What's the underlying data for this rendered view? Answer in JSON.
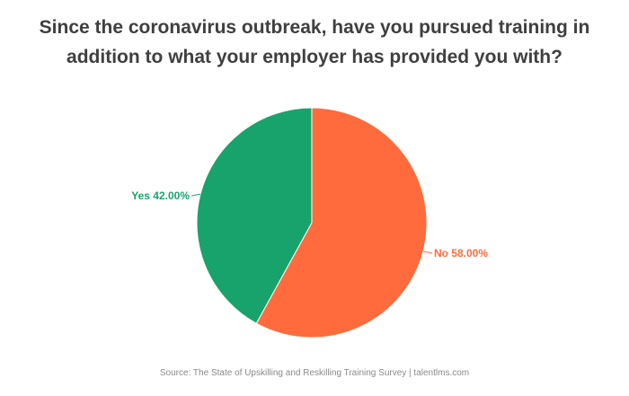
{
  "title": {
    "line1": "Since the coronavirus outbreak, have you pursued training in",
    "line2": "addition to what your employer has provided you with?"
  },
  "source": "Source: The State of Upskilling and Reskilling Training Survey  |  talentlms.com",
  "chart_data": {
    "type": "pie",
    "title": "Since the coronavirus outbreak, have you pursued training in addition to what your employer has provided you with?",
    "slices": [
      {
        "label": "No",
        "value": 58.0,
        "display": "No 58.00%",
        "color": "#ff6b3d"
      },
      {
        "label": "Yes",
        "value": 42.0,
        "display": "Yes 42.00%",
        "color": "#19a36c"
      }
    ],
    "legend": "none"
  }
}
